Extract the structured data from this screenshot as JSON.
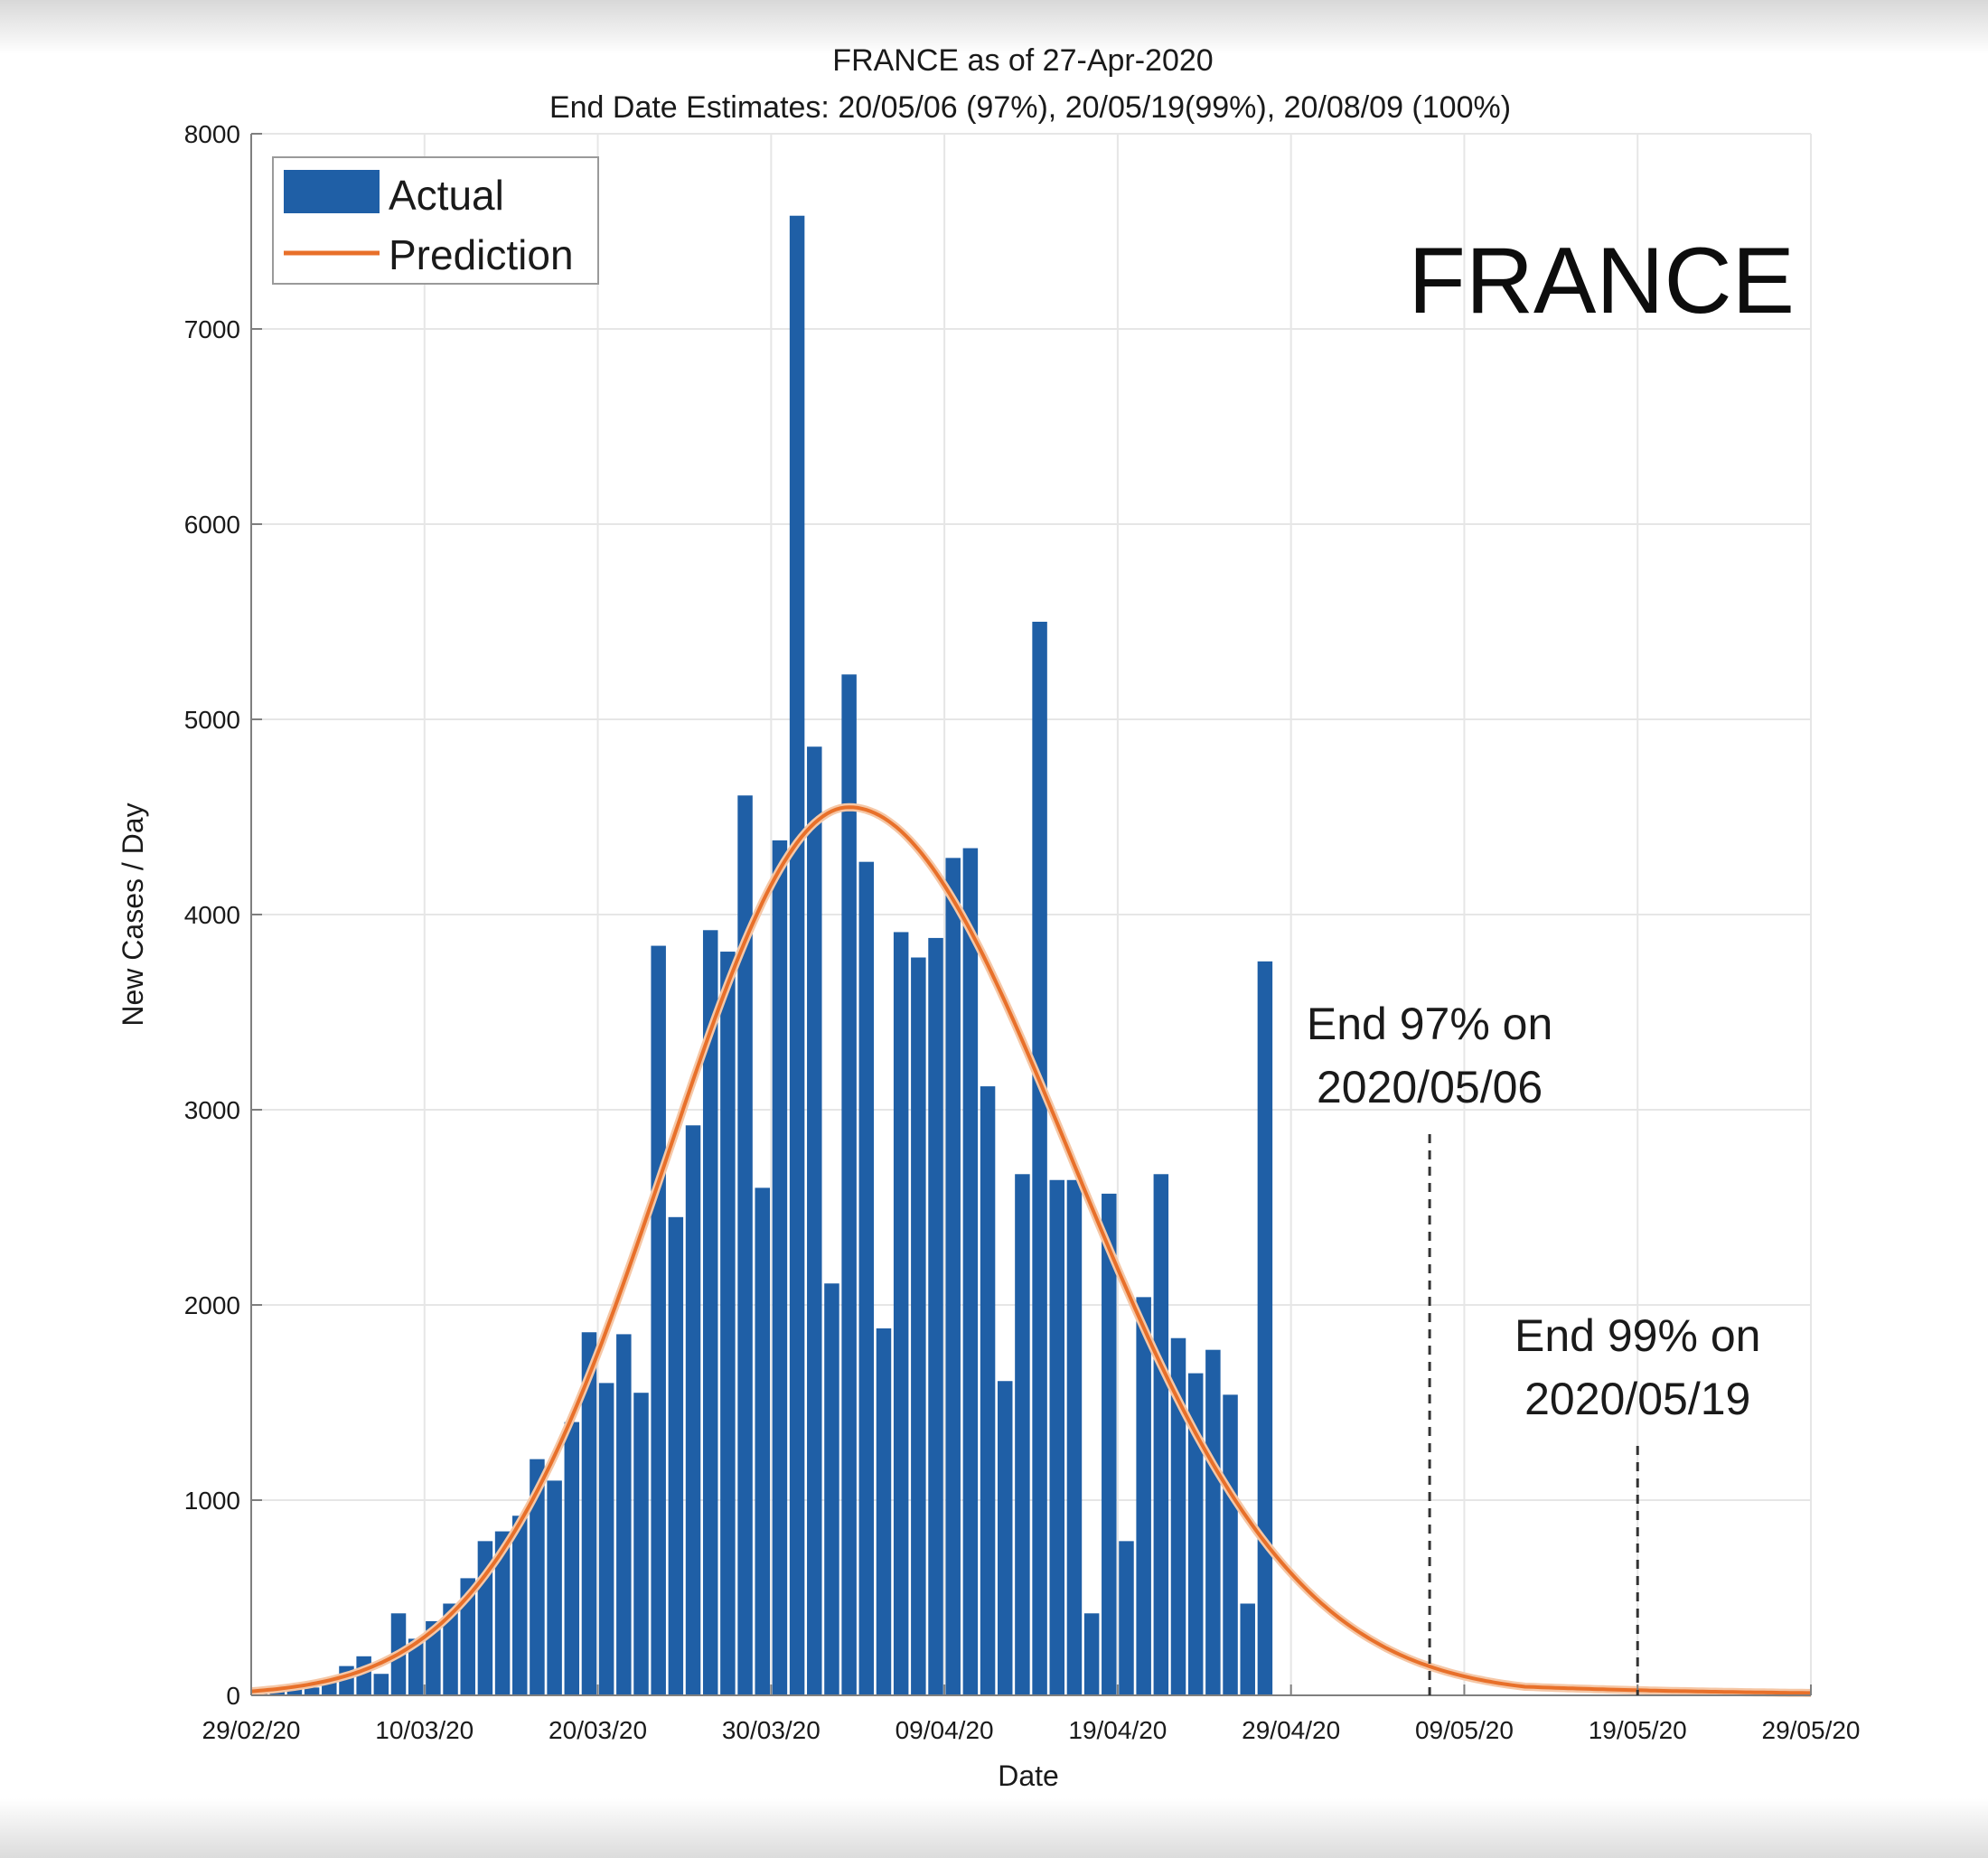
{
  "chart_data": {
    "type": "bar",
    "title": "FRANCE as of 27-Apr-2020",
    "subtitle": "End Date Estimates: 20/05/06 (97%), 20/05/19(99%), 20/08/09 (100%)",
    "xlabel": "Date",
    "ylabel": "New Cases / Day",
    "ylim": [
      0,
      8000
    ],
    "xlim_days": [
      0,
      90
    ],
    "yticks": [
      0,
      1000,
      2000,
      3000,
      4000,
      5000,
      6000,
      7000,
      8000
    ],
    "xticks": [
      {
        "label": "29/02/20",
        "day": 0
      },
      {
        "label": "10/03/20",
        "day": 10
      },
      {
        "label": "20/03/20",
        "day": 20
      },
      {
        "label": "30/03/20",
        "day": 30
      },
      {
        "label": "09/04/20",
        "day": 40
      },
      {
        "label": "19/04/20",
        "day": 50
      },
      {
        "label": "29/04/20",
        "day": 60
      },
      {
        "label": "09/05/20",
        "day": 70
      },
      {
        "label": "19/05/20",
        "day": 80
      },
      {
        "label": "29/05/20",
        "day": 90
      }
    ],
    "grid": true,
    "legend_position": "top-left",
    "series": [
      {
        "name": "Actual",
        "kind": "bar",
        "color": "#1f5fa6",
        "start_day": 0,
        "values": [
          30,
          40,
          50,
          40,
          80,
          150,
          200,
          110,
          420,
          290,
          380,
          470,
          600,
          790,
          840,
          920,
          1210,
          1100,
          1400,
          1860,
          1600,
          1850,
          1550,
          3840,
          2450,
          2920,
          3920,
          3810,
          4610,
          2600,
          4380,
          7580,
          4860,
          2110,
          5230,
          4270,
          1880,
          3910,
          3780,
          3880,
          4290,
          4340,
          3120,
          1610,
          2670,
          5500,
          2640,
          2640,
          420,
          2570,
          790,
          2040,
          2670,
          1830,
          1650,
          1770,
          1540,
          470,
          3760
        ]
      },
      {
        "name": "Prediction",
        "kind": "line",
        "color": "#e8702a",
        "peak_day": 34.5,
        "peak_value": 4550,
        "left_width_days": 10.5,
        "right_width_days": 12.8,
        "tail_value_at_end": 60
      }
    ],
    "annotations": [
      {
        "text_line1": "End 97% on",
        "text_line2": "2020/05/06",
        "day": 68
      },
      {
        "text_line1": "End 99% on",
        "text_line2": "2020/05/19",
        "day": 80
      }
    ],
    "country_label": "FRANCE"
  },
  "colors": {
    "actual": "#1f5fa6",
    "prediction": "#e8702a",
    "grid": "#e6e6e6",
    "axis": "#7f7f7f"
  }
}
